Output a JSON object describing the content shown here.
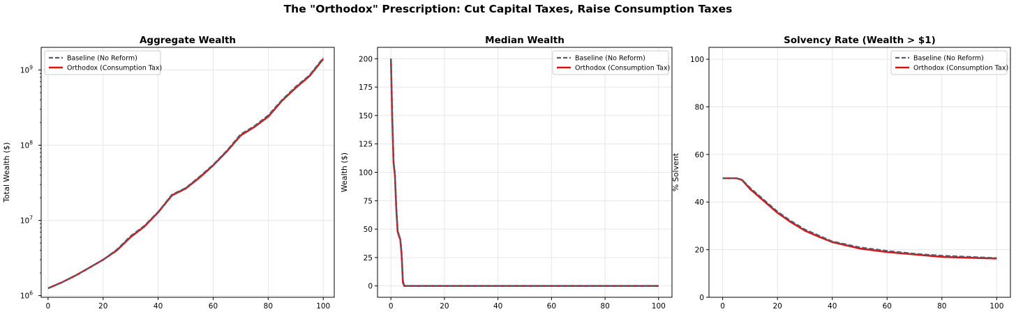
{
  "suptitle": "The \"Orthodox\" Prescription: Cut Capital Taxes, Raise Consumption Taxes",
  "colors": {
    "baseline": "#5a5a6e",
    "orthodox": "#e01010",
    "grid": "#e6e6e6"
  },
  "chart_data": [
    {
      "type": "line",
      "title": "Aggregate Wealth",
      "xlabel": "",
      "ylabel": "Total Wealth ($)",
      "yscale": "log",
      "xlim": [
        -2.5,
        104
      ],
      "ylim": [
        950000,
        2000000000
      ],
      "xticks": [
        0,
        20,
        40,
        60,
        80,
        100
      ],
      "yticks": [
        1000000,
        10000000,
        100000000,
        1000000000
      ],
      "ytick_labels": [
        "10^6",
        "10^7",
        "10^8",
        "10^9"
      ],
      "grid": true,
      "legend": "upper-left",
      "series": [
        {
          "name": "Baseline (No Reform)",
          "style": "dashed",
          "x": [
            0,
            5,
            10,
            15,
            20,
            25,
            30,
            35,
            40,
            45,
            50,
            55,
            60,
            65,
            70,
            75,
            80,
            85,
            90,
            95,
            100
          ],
          "y": [
            1250000,
            1500000,
            1850000,
            2350000,
            3000000,
            4100000,
            6200000,
            8500000,
            13000000,
            22000000,
            27000000,
            38000000,
            55000000,
            85000000,
            140000000,
            180000000,
            250000000,
            400000000,
            600000000,
            850000000,
            1450000000
          ]
        },
        {
          "name": "Orthodox (Consumption Tax)",
          "style": "solid",
          "x": [
            0,
            5,
            10,
            15,
            20,
            25,
            30,
            35,
            40,
            45,
            50,
            55,
            60,
            65,
            70,
            75,
            80,
            85,
            90,
            95,
            100
          ],
          "y": [
            1250000,
            1500000,
            1850000,
            2350000,
            3000000,
            4000000,
            6000000,
            8300000,
            12800000,
            21500000,
            26500000,
            37000000,
            54000000,
            83000000,
            135000000,
            175000000,
            240000000,
            390000000,
            580000000,
            830000000,
            1400000000
          ]
        }
      ]
    },
    {
      "type": "line",
      "title": "Median Wealth",
      "xlabel": "",
      "ylabel": "Wealth ($)",
      "xlim": [
        -5,
        105
      ],
      "ylim": [
        -10,
        210
      ],
      "xticks": [
        0,
        20,
        40,
        60,
        80,
        100
      ],
      "yticks": [
        0,
        25,
        50,
        75,
        100,
        125,
        150,
        175,
        200
      ],
      "grid": true,
      "legend": "upper-right",
      "series": [
        {
          "name": "Baseline (No Reform)",
          "style": "dashed",
          "x": [
            0,
            0.5,
            1,
            1.5,
            2,
            2.5,
            3,
            3.5,
            4,
            4.5,
            5,
            10,
            100
          ],
          "y": [
            200,
            150,
            110,
            100,
            70,
            50,
            45,
            42,
            30,
            5,
            0,
            0,
            0
          ]
        },
        {
          "name": "Orthodox (Consumption Tax)",
          "style": "solid",
          "x": [
            0,
            0.5,
            1,
            1.5,
            2,
            2.5,
            3,
            3.5,
            4,
            4.5,
            5,
            10,
            100
          ],
          "y": [
            200,
            148,
            108,
            98,
            68,
            48,
            44,
            41,
            28,
            3,
            0,
            0,
            0
          ]
        }
      ]
    },
    {
      "type": "line",
      "title": "Solvency Rate (Wealth > $1)",
      "xlabel": "",
      "ylabel": "% Solvent",
      "xlim": [
        -5,
        105
      ],
      "ylim": [
        0,
        105
      ],
      "xticks": [
        0,
        20,
        40,
        60,
        80,
        100
      ],
      "yticks": [
        0,
        20,
        40,
        60,
        80,
        100
      ],
      "grid": true,
      "legend": "upper-right",
      "series": [
        {
          "name": "Baseline (No Reform)",
          "style": "dashed",
          "x": [
            0,
            3,
            5,
            7,
            10,
            15,
            20,
            25,
            30,
            35,
            40,
            50,
            60,
            70,
            80,
            90,
            100
          ],
          "y": [
            50,
            50,
            50,
            49.5,
            46,
            41,
            36,
            32,
            28.5,
            26,
            23.5,
            21,
            19.5,
            18.3,
            17.5,
            17,
            16.5
          ]
        },
        {
          "name": "Orthodox (Consumption Tax)",
          "style": "solid",
          "x": [
            0,
            3,
            5,
            7,
            10,
            15,
            20,
            25,
            30,
            35,
            40,
            50,
            60,
            70,
            80,
            90,
            100
          ],
          "y": [
            50,
            50,
            50,
            49.3,
            45.5,
            40.5,
            35.5,
            31.5,
            28,
            25.5,
            23.2,
            20.5,
            19,
            18,
            17,
            16.6,
            16.3
          ]
        }
      ]
    }
  ]
}
